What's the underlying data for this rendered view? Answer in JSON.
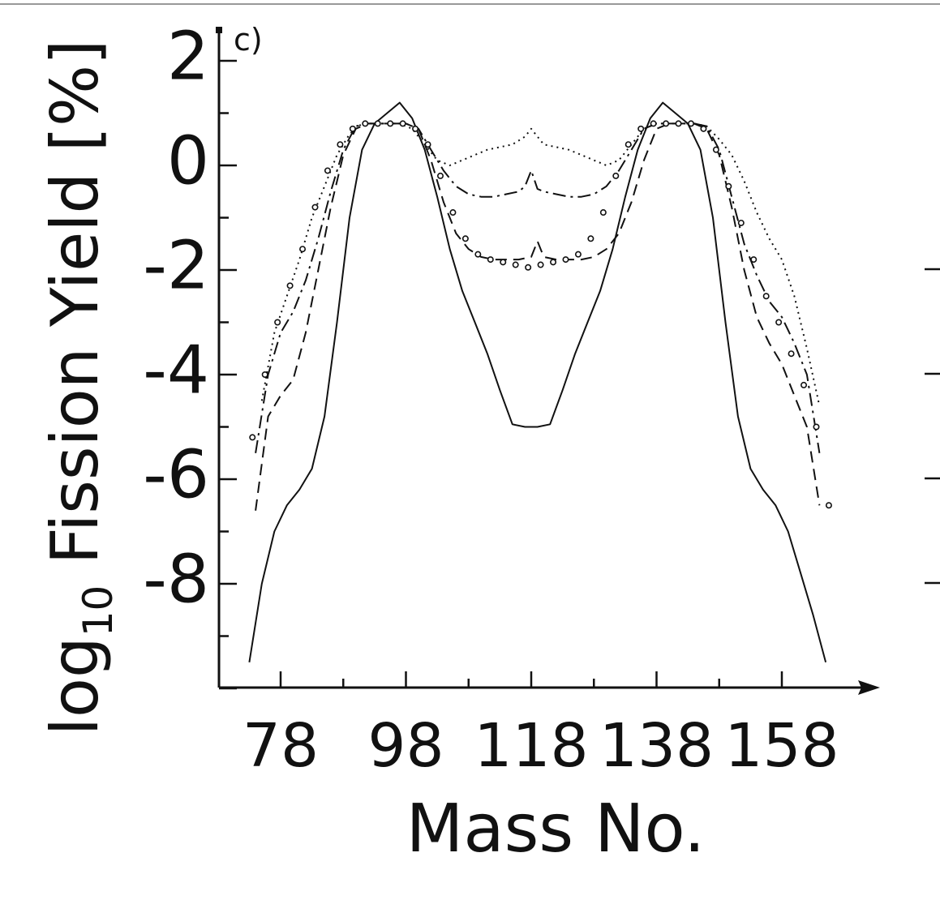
{
  "chart_data": {
    "type": "line",
    "panel_label": "c)",
    "xlabel": "Mass No.",
    "ylabel_main": "log",
    "ylabel_sub": "10",
    "ylabel_rest": " Fission Yield [%]",
    "xlim": [
      70,
      166
    ],
    "ylim": [
      -10,
      2.4
    ],
    "x_ticks": [
      78,
      98,
      118,
      138,
      158
    ],
    "y_ticks": [
      2,
      0,
      -2,
      -4,
      -6,
      -8
    ],
    "x_tick_labels": [
      "78",
      "98",
      "118",
      "138",
      "158"
    ],
    "y_tick_labels": [
      "2",
      "0",
      "-2",
      "-4",
      "-6",
      "-8"
    ],
    "grid": false,
    "series": [
      {
        "style": "solid",
        "x": [
          73,
          75,
          77,
          79,
          81,
          83,
          85,
          87,
          89,
          91,
          93,
          95,
          97,
          99,
          101,
          103,
          105,
          107,
          109,
          111,
          113,
          115,
          117,
          119,
          121,
          123,
          125,
          127,
          129,
          131,
          133,
          135,
          137,
          139,
          141,
          143,
          145,
          147,
          149,
          151,
          153,
          155,
          157,
          159,
          161,
          163,
          165
        ],
        "y": [
          -9.5,
          -8.0,
          -7.0,
          -6.5,
          -6.2,
          -5.8,
          -4.8,
          -3.0,
          -1.0,
          0.3,
          0.8,
          1.0,
          1.2,
          0.9,
          0.3,
          -0.6,
          -1.6,
          -2.4,
          -3.0,
          -3.6,
          -4.3,
          -4.95,
          -5.0,
          -5.0,
          -4.95,
          -4.3,
          -3.6,
          -3.0,
          -2.4,
          -1.6,
          -0.6,
          0.3,
          0.9,
          1.2,
          1.0,
          0.8,
          0.3,
          -1.0,
          -3.0,
          -4.8,
          -5.8,
          -6.2,
          -6.5,
          -7.0,
          -7.8,
          -8.6,
          -9.5
        ]
      },
      {
        "style": "dashed",
        "x": [
          74,
          76,
          78,
          80,
          82,
          84,
          86,
          88,
          90,
          92,
          94,
          96,
          98,
          100,
          102,
          104,
          106,
          108,
          110,
          112,
          114,
          116,
          118,
          119,
          120,
          122,
          124,
          126,
          128,
          130,
          132,
          134,
          136,
          138,
          140,
          142,
          144,
          146,
          148,
          150,
          152,
          154,
          156,
          158,
          160,
          162,
          164
        ],
        "y": [
          -6.6,
          -4.8,
          -4.4,
          -4.1,
          -3.2,
          -2.0,
          -0.8,
          0.2,
          0.7,
          0.8,
          0.8,
          0.8,
          0.8,
          0.7,
          0.1,
          -0.7,
          -1.3,
          -1.6,
          -1.75,
          -1.8,
          -1.8,
          -1.8,
          -1.75,
          -1.45,
          -1.75,
          -1.8,
          -1.8,
          -1.8,
          -1.75,
          -1.6,
          -1.3,
          -0.7,
          0.1,
          0.7,
          0.8,
          0.8,
          0.8,
          0.7,
          0.2,
          -0.8,
          -2.0,
          -2.9,
          -3.4,
          -3.8,
          -4.4,
          -5.0,
          -6.5
        ]
      },
      {
        "style": "dash-dot",
        "x": [
          74,
          76,
          78,
          80,
          82,
          84,
          86,
          88,
          90,
          92,
          94,
          96,
          98,
          100,
          102,
          104,
          106,
          108,
          110,
          112,
          114,
          116,
          117,
          118,
          119,
          120,
          122,
          124,
          126,
          128,
          130,
          132,
          134,
          136,
          138,
          140,
          142,
          144,
          146,
          148,
          150,
          152,
          154,
          156,
          158,
          160,
          162,
          164
        ],
        "y": [
          -5.5,
          -4.0,
          -3.2,
          -2.8,
          -2.2,
          -1.4,
          -0.5,
          0.3,
          0.75,
          0.8,
          0.8,
          0.8,
          0.8,
          0.7,
          0.3,
          -0.1,
          -0.4,
          -0.55,
          -0.6,
          -0.6,
          -0.55,
          -0.5,
          -0.4,
          -0.1,
          -0.45,
          -0.5,
          -0.55,
          -0.6,
          -0.6,
          -0.55,
          -0.4,
          -0.1,
          0.3,
          0.7,
          0.8,
          0.8,
          0.8,
          0.8,
          0.75,
          0.3,
          -0.6,
          -1.5,
          -2.1,
          -2.6,
          -2.9,
          -3.4,
          -4.0,
          -5.5
        ]
      },
      {
        "style": "dotted",
        "x": [
          75,
          77,
          79,
          81,
          83,
          85,
          87,
          89,
          91,
          93,
          95,
          97,
          99,
          101,
          103,
          105,
          107,
          109,
          111,
          113,
          115,
          117,
          118,
          119,
          120,
          122,
          124,
          126,
          128,
          130,
          132,
          134,
          136,
          138,
          140,
          142,
          144,
          146,
          148,
          150,
          152,
          154,
          156,
          158,
          160,
          162,
          164
        ],
        "y": [
          -4.5,
          -3.2,
          -2.5,
          -1.8,
          -1.0,
          -0.4,
          0.2,
          0.6,
          0.8,
          0.8,
          0.8,
          0.8,
          0.7,
          0.4,
          0.1,
          0.0,
          0.1,
          0.2,
          0.3,
          0.35,
          0.4,
          0.55,
          0.7,
          0.55,
          0.4,
          0.35,
          0.3,
          0.2,
          0.1,
          0.0,
          0.1,
          0.4,
          0.7,
          0.8,
          0.8,
          0.8,
          0.8,
          0.75,
          0.5,
          0.2,
          -0.3,
          -0.9,
          -1.4,
          -1.8,
          -2.5,
          -3.5,
          -4.6
        ]
      },
      {
        "style": "open-circles",
        "x": [
          73.5,
          75.5,
          77.5,
          79.5,
          81.5,
          83.5,
          85.5,
          87.5,
          89.5,
          91.5,
          93.5,
          95.5,
          97.5,
          99.5,
          101.5,
          103.5,
          105.5,
          107.5,
          109.5,
          111.5,
          113.5,
          115.5,
          117.5,
          119.5,
          121.5,
          123.5,
          125.5,
          127.5,
          129.5,
          131.5,
          133.5,
          135.5,
          137.5,
          139.5,
          141.5,
          143.5,
          145.5,
          147.5,
          149.5,
          151.5,
          153.5,
          155.5,
          157.5,
          159.5,
          161.5,
          163.5,
          165.5
        ],
        "y": [
          -5.2,
          -4.0,
          -3.0,
          -2.3,
          -1.6,
          -0.8,
          -0.1,
          0.4,
          0.7,
          0.8,
          0.8,
          0.8,
          0.8,
          0.7,
          0.4,
          -0.2,
          -0.9,
          -1.4,
          -1.7,
          -1.8,
          -1.85,
          -1.9,
          -1.95,
          -1.9,
          -1.85,
          -1.8,
          -1.7,
          -1.4,
          -0.9,
          -0.2,
          0.4,
          0.7,
          0.8,
          0.8,
          0.8,
          0.8,
          0.7,
          0.3,
          -0.4,
          -1.1,
          -1.8,
          -2.5,
          -3.0,
          -3.6,
          -4.2,
          -5.0,
          -6.5
        ]
      }
    ]
  }
}
